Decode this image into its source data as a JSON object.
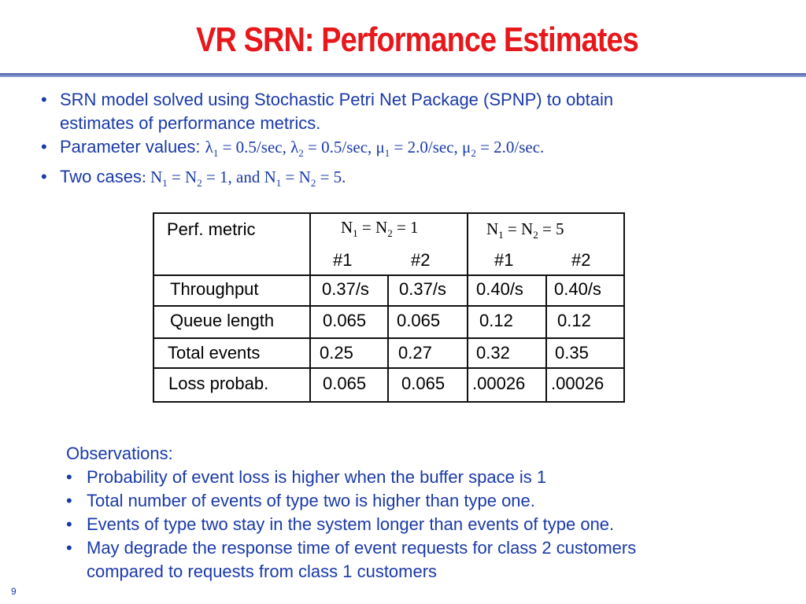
{
  "slide": {
    "title": "VR SRN: Performance Estimates",
    "bullet_symbol": "•",
    "bullets": {
      "b1_line1": "SRN model solved using Stochastic Petri Net Package (SPNP) to obtain",
      "b1_line2": "estimates of performance metrics.",
      "b2_label": "Parameter values:",
      "b2_math": {
        "l1": "λ",
        "l1_sub": "1",
        "l1_val": " = 0.5/sec, ",
        "l2": "λ",
        "l2_sub": "2",
        "l2_val": " =  0.5/sec, ",
        "m1": "μ",
        "m1_sub": "1",
        "m1_val": " = 2.0/sec, ",
        "m2": "μ",
        "m2_sub": "2",
        "m2_val": " =  2.0/sec."
      },
      "b3_label": "Two cases",
      "b3_math": {
        "p1": ": N",
        "s1": "1",
        "p2": " = N",
        "s2": "2",
        "p3": " = 1, and N",
        "s3": "1",
        "p4": " = N",
        "s4": "2",
        "p5": " = 5."
      }
    },
    "table": {
      "header_metric": "Perf. metric",
      "case1": {
        "a": "N",
        "a_sub": "1",
        "b": " = N",
        "b_sub": "2",
        "c": " = 1"
      },
      "case2": {
        "a": "N",
        "a_sub": "1",
        "b": " = N",
        "b_sub": "2",
        "c": " = 5"
      },
      "sub_headers": [
        "#1",
        "#2",
        "#1",
        "#2"
      ],
      "rows": [
        {
          "metric": "Throughput",
          "values": [
            "0.37/s",
            "0.37/s",
            "0.40/s",
            "0.40/s"
          ]
        },
        {
          "metric": "Queue length",
          "values": [
            "0.065",
            "0.065",
            "0.12",
            "0.12"
          ]
        },
        {
          "metric": "Total events",
          "values": [
            "0.25",
            "0.27",
            "0.32",
            "0.35"
          ]
        },
        {
          "metric": "Loss probab.",
          "values": [
            "0.065",
            "0.065",
            ".00026",
            ".00026"
          ]
        }
      ]
    },
    "observations": {
      "heading": "Observations:",
      "items": [
        "Probability of event loss is higher when the buffer space is 1",
        "Total number of events of type two is higher than type one.",
        "Events of type two stay in the system longer than events of type one.",
        "May degrade the response time of event requests for class 2 customers"
      ],
      "item4_line2": "compared to requests from class 1 customers"
    },
    "page_number": "9"
  },
  "colors": {
    "title": "#e8171b",
    "body_text": "#1a3aa8",
    "rule": "#4a5fa8"
  }
}
